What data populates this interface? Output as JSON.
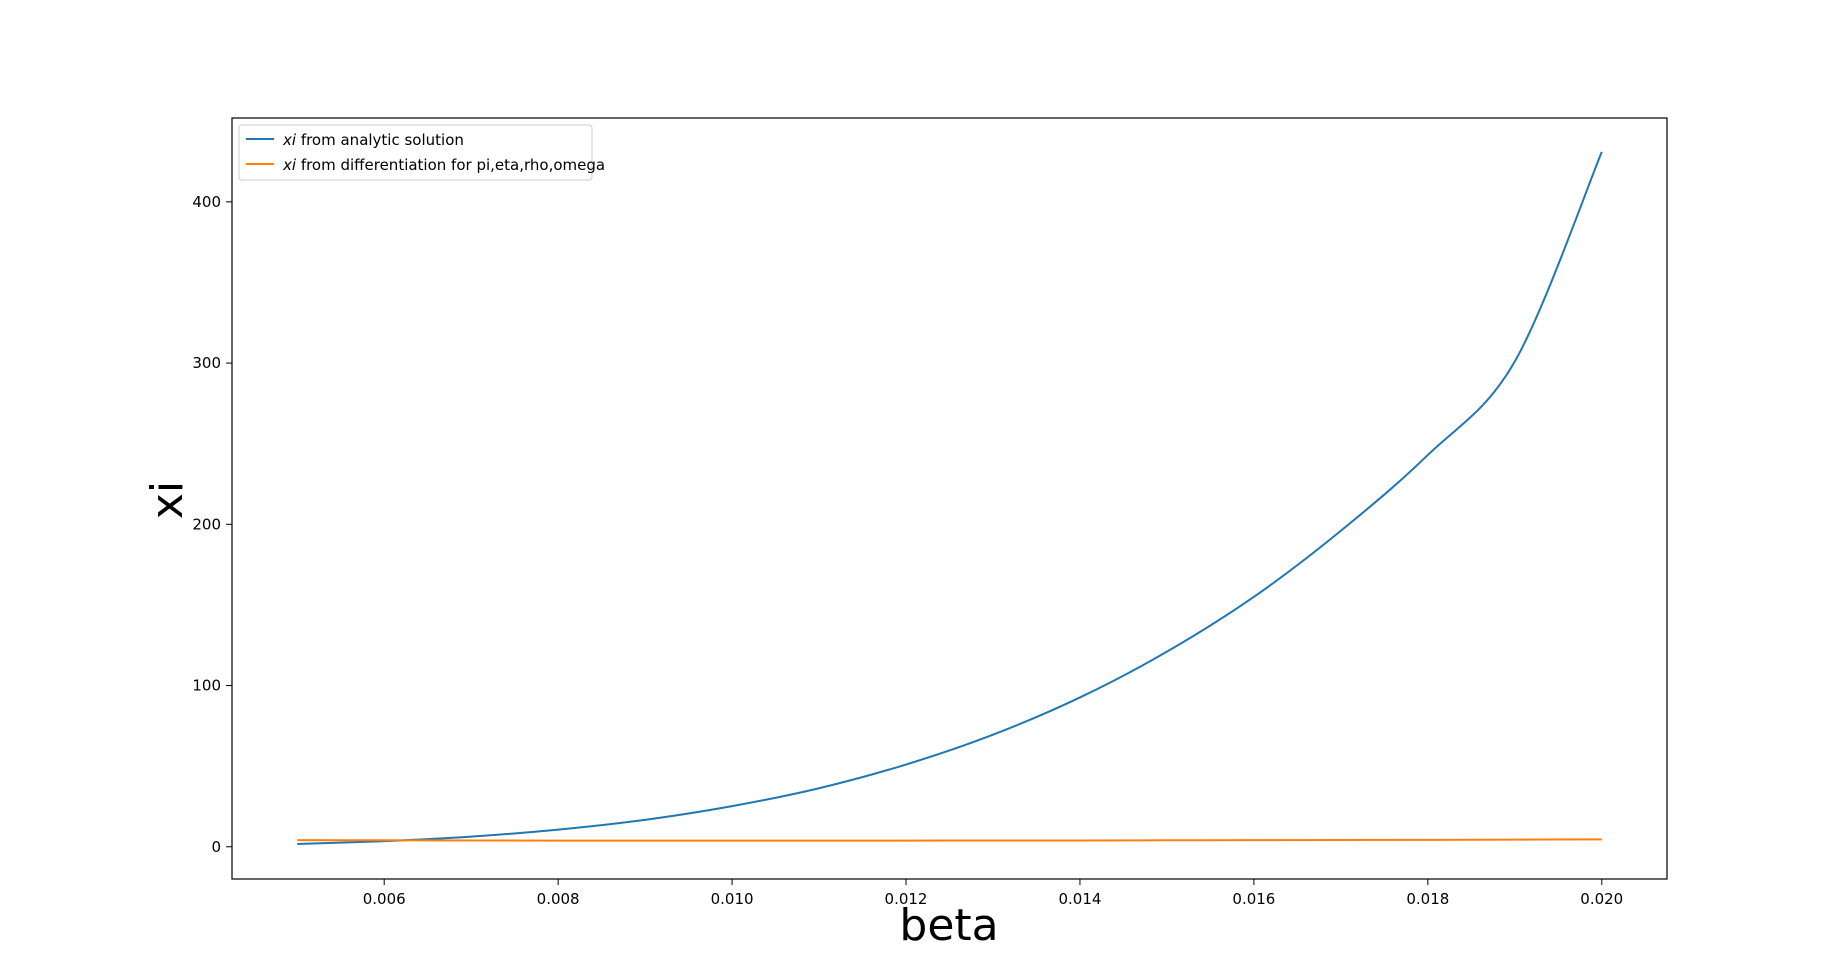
{
  "chart_data": {
    "type": "line",
    "xlabel": "beta",
    "ylabel": "xi",
    "xlim": [
      0.00425,
      0.02075
    ],
    "ylim": [
      -20,
      452
    ],
    "xticks": [
      "0.006",
      "0.008",
      "0.010",
      "0.012",
      "0.014",
      "0.016",
      "0.018",
      "0.020"
    ],
    "xtick_values": [
      0.006,
      0.008,
      0.01,
      0.012,
      0.014,
      0.016,
      0.018,
      0.02
    ],
    "yticks": [
      "0",
      "100",
      "200",
      "300",
      "400"
    ],
    "ytick_values": [
      0,
      100,
      200,
      300,
      400
    ],
    "grid": false,
    "legend_position": "top-left",
    "series": [
      {
        "name": "xi",
        "name_suffix": " from analytic solution",
        "color": "#1f77b4",
        "x": [
          0.005,
          0.006,
          0.007,
          0.008,
          0.009,
          0.01,
          0.011,
          0.012,
          0.013,
          0.014,
          0.015,
          0.016,
          0.017,
          0.018,
          0.019,
          0.02
        ],
        "y": [
          1.7,
          3.5,
          6.3,
          10.6,
          16.7,
          25.2,
          36.3,
          51,
          69.5,
          92.6,
          121,
          155,
          196,
          243,
          301,
          431
        ]
      },
      {
        "name": "xi",
        "name_suffix": " from differentiation for pi,eta,rho,omega",
        "color": "#ff7f0e",
        "x": [
          0.005,
          0.006,
          0.007,
          0.008,
          0.009,
          0.01,
          0.011,
          0.012,
          0.013,
          0.014,
          0.015,
          0.016,
          0.017,
          0.018,
          0.019,
          0.02
        ],
        "y": [
          4.1,
          4.0,
          3.9,
          3.8,
          3.8,
          3.8,
          3.8,
          3.8,
          3.9,
          3.9,
          4.0,
          4.1,
          4.2,
          4.3,
          4.4,
          4.6
        ]
      }
    ]
  }
}
